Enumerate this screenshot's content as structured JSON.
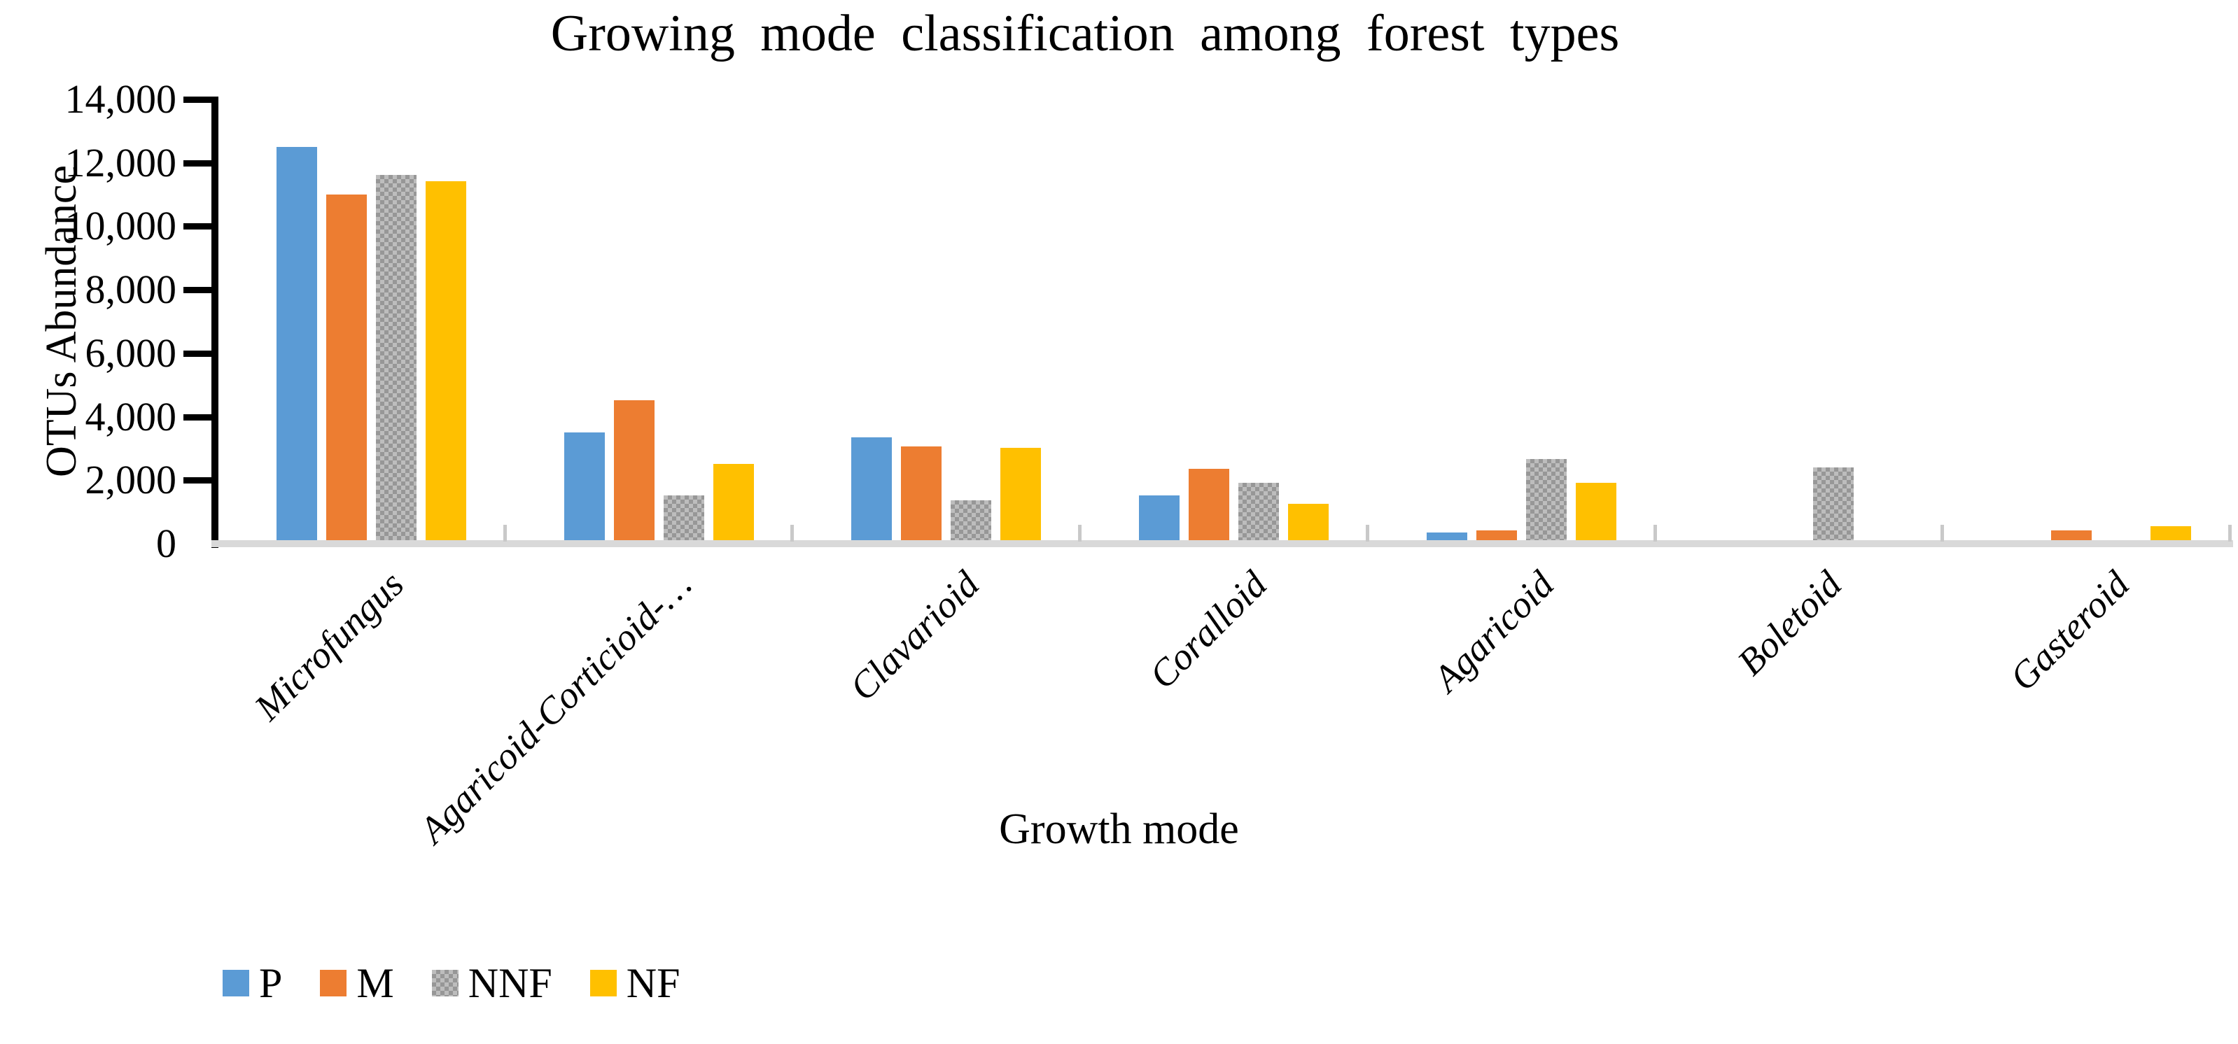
{
  "window": {
    "background": "#FFFFFF"
  },
  "chart_data": {
    "type": "bar",
    "title": "Growing mode classification among forest types",
    "xlabel": "Growth mode",
    "ylabel": "OTUs Abundance",
    "ylim": [
      0,
      14000
    ],
    "ytick_step": 2000,
    "ytick_labels": [
      "14,000",
      "12,000",
      "10,000",
      "8,000",
      "6,000",
      "4,000",
      "2,000",
      "0"
    ],
    "categories": [
      "Microfungus",
      "Agaricoid-Corticioid-…",
      "Clavarioid",
      "Coralloid",
      "Agaricoid",
      "Boletoid",
      "Gasteroid"
    ],
    "series": [
      {
        "name": "P",
        "color": "#5B9BD5",
        "pattern": "solid",
        "values": [
          12400,
          3400,
          3250,
          1400,
          250,
          0,
          0
        ]
      },
      {
        "name": "M",
        "color": "#ED7D31",
        "pattern": "solid",
        "values": [
          10900,
          4400,
          2950,
          2250,
          300,
          0,
          300
        ]
      },
      {
        "name": "NNF",
        "color": "#ADADAD",
        "pattern": "checker",
        "values": [
          11500,
          1400,
          1250,
          1800,
          2550,
          2300,
          0
        ]
      },
      {
        "name": "NF",
        "color": "#FFC000",
        "pattern": "solid",
        "values": [
          11300,
          2400,
          2900,
          1150,
          1800,
          0,
          450
        ]
      }
    ],
    "legend": {
      "position": "bottom-left",
      "entries": [
        "P",
        "M",
        "NNF",
        "NF"
      ]
    },
    "grid": false,
    "axis_colors": {
      "y_axis": "#000000",
      "x_axis": "#D9D9D9",
      "category_tick": "#C9C9C9"
    }
  }
}
